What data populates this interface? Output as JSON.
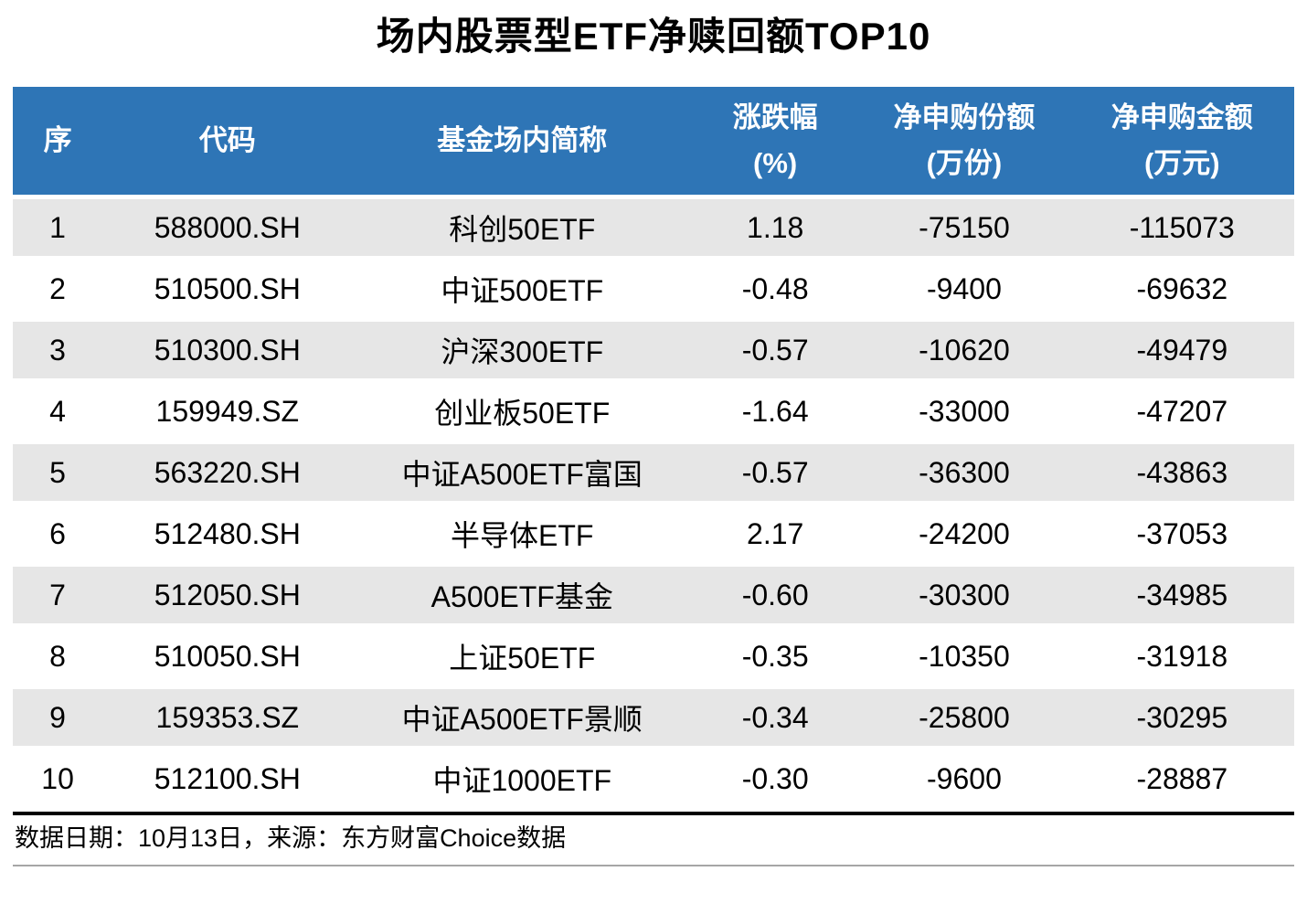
{
  "chart_data": {
    "type": "table",
    "title": "场内股票型ETF净赎回额TOP10",
    "columns": [
      {
        "key": "no",
        "label": "序",
        "sub": ""
      },
      {
        "key": "code",
        "label": "代码",
        "sub": ""
      },
      {
        "key": "name",
        "label": "基金场内简称",
        "sub": ""
      },
      {
        "key": "chg",
        "label": "涨跌幅",
        "sub": "(%)"
      },
      {
        "key": "shares",
        "label": "净申购份额",
        "sub": "(万份)"
      },
      {
        "key": "amount",
        "label": "净申购金额",
        "sub": "(万元)"
      }
    ],
    "rows": [
      {
        "no": "1",
        "code": "588000.SH",
        "name": "科创50ETF",
        "chg": "1.18",
        "shares": "-75150",
        "amount": "-115073"
      },
      {
        "no": "2",
        "code": "510500.SH",
        "name": "中证500ETF",
        "chg": "-0.48",
        "shares": "-9400",
        "amount": "-69632"
      },
      {
        "no": "3",
        "code": "510300.SH",
        "name": "沪深300ETF",
        "chg": "-0.57",
        "shares": "-10620",
        "amount": "-49479"
      },
      {
        "no": "4",
        "code": "159949.SZ",
        "name": "创业板50ETF",
        "chg": "-1.64",
        "shares": "-33000",
        "amount": "-47207"
      },
      {
        "no": "5",
        "code": "563220.SH",
        "name": "中证A500ETF富国",
        "chg": "-0.57",
        "shares": "-36300",
        "amount": "-43863"
      },
      {
        "no": "6",
        "code": "512480.SH",
        "name": "半导体ETF",
        "chg": "2.17",
        "shares": "-24200",
        "amount": "-37053"
      },
      {
        "no": "7",
        "code": "512050.SH",
        "name": "A500ETF基金",
        "chg": "-0.60",
        "shares": "-30300",
        "amount": "-34985"
      },
      {
        "no": "8",
        "code": "510050.SH",
        "name": "上证50ETF",
        "chg": "-0.35",
        "shares": "-10350",
        "amount": "-31918"
      },
      {
        "no": "9",
        "code": "159353.SZ",
        "name": "中证A500ETF景顺",
        "chg": "-0.34",
        "shares": "-25800",
        "amount": "-30295"
      },
      {
        "no": "10",
        "code": "512100.SH",
        "name": "中证1000ETF",
        "chg": "-0.30",
        "shares": "-9600",
        "amount": "-28887"
      }
    ],
    "source_note": "数据日期：10月13日，来源：东方财富Choice数据",
    "layout": {
      "stripe_pattern": "odd-rows-gray",
      "header_rows": 1
    }
  },
  "colors": {
    "header_bg": "#2E75B6",
    "header_text": "#FFFFFF",
    "stripe_bg": "#E6E6E6",
    "body_text": "#000000",
    "footer_rule_top": "#000000",
    "footer_rule_bottom": "#A6A6A6"
  }
}
